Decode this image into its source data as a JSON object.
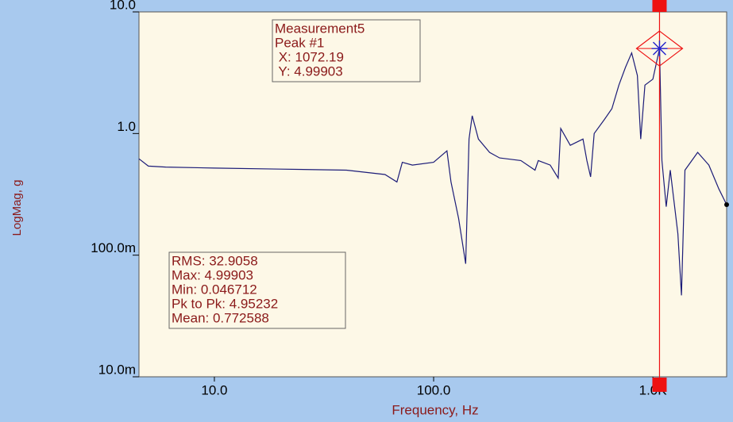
{
  "chart_data": {
    "type": "line",
    "xlabel": "Frequency, Hz",
    "ylabel": "LogMag, g",
    "xscale": "log",
    "yscale": "log",
    "xlim": [
      4.53,
      2170
    ],
    "ylim": [
      0.01,
      10
    ],
    "xticks": [
      {
        "value": 10,
        "label": "10.0"
      },
      {
        "value": 100,
        "label": "100.0"
      },
      {
        "value": 1000,
        "label": "1.0K"
      }
    ],
    "yticks": [
      {
        "value": 0.01,
        "label": "10.0m"
      },
      {
        "value": 0.1,
        "label": "100.0m"
      },
      {
        "value": 1,
        "label": "1.0"
      },
      {
        "value": 10,
        "label": "10.0"
      }
    ],
    "series": [
      {
        "name": "Measurement5",
        "color": "#1c1c78",
        "x": [
          4.53,
          5,
          6,
          10,
          20,
          40,
          60,
          68,
          72,
          80,
          100,
          115,
          120,
          130,
          140,
          145,
          150,
          160,
          180,
          200,
          250,
          290,
          300,
          340,
          370,
          380,
          420,
          480,
          500,
          520,
          540,
          600,
          650,
          700,
          750,
          800,
          850,
          880,
          920,
          1000,
          1072.19,
          1100,
          1150,
          1200,
          1300,
          1350,
          1400,
          1600,
          1800,
          2000,
          2170
        ],
        "values": [
          0.62,
          0.54,
          0.53,
          0.52,
          0.51,
          0.5,
          0.46,
          0.4,
          0.58,
          0.55,
          0.58,
          0.72,
          0.4,
          0.2,
          0.085,
          0.9,
          1.4,
          0.9,
          0.7,
          0.63,
          0.6,
          0.5,
          0.6,
          0.55,
          0.43,
          1.1,
          0.8,
          0.9,
          0.6,
          0.44,
          1.0,
          1.3,
          1.6,
          2.5,
          3.5,
          4.6,
          3.0,
          0.9,
          2.5,
          2.8,
          4.99903,
          0.6,
          0.25,
          0.5,
          0.15,
          0.046712,
          0.5,
          0.7,
          0.55,
          0.35,
          0.26
        ]
      }
    ],
    "cursor": {
      "x": 1072.19,
      "y": 4.99903,
      "color": "#ee1111"
    },
    "peak_box": [
      "Measurement5",
      "Peak #1",
      " X: 1072.19",
      " Y: 4.99903"
    ],
    "stats_box": [
      "RMS: 32.9058",
      "Max: 4.99903",
      "Min: 0.046712",
      "Pk to Pk: 4.95232",
      "Mean: 0.772588"
    ]
  }
}
